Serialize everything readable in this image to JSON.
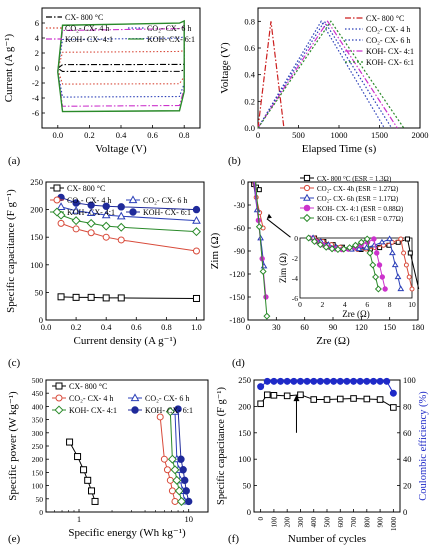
{
  "chart_data": [
    {
      "id": "a",
      "panel_label": "(a)",
      "type": "line",
      "xlabel": "Voltage (V)",
      "ylabel": "Current (A g⁻¹)",
      "xlim": [
        -0.1,
        0.9
      ],
      "ylim": [
        -8,
        8
      ],
      "xticks": [
        "0.0",
        "0.2",
        "0.4",
        "0.6",
        "0.8"
      ],
      "yticks": [
        "-6",
        "-4",
        "-2",
        "0",
        "2",
        "4",
        "6"
      ],
      "legend_position": "top",
      "series": [
        {
          "name": "CX- 800 °C",
          "color": "#000000",
          "dash": "6,2,1.5,2",
          "half_height": 0.45
        },
        {
          "name": "CO₂- CX- 4 h",
          "color": "#d84a3a",
          "dash": "1.5,2",
          "half_height": 2.1
        },
        {
          "name": "CO₂- CX- 6 h",
          "color": "#2b3fb8",
          "dash": "1.5,2",
          "half_height": 3.8
        },
        {
          "name": "KOH- CX- 4:1",
          "color": "#cc33cc",
          "dash": "6,2,1.5,2",
          "half_height": 5.0
        },
        {
          "name": "KOH- CX- 6:1",
          "color": "#2a8a2a",
          "dash": "",
          "half_height": 5.7
        }
      ]
    },
    {
      "id": "b",
      "panel_label": "(b)",
      "type": "line",
      "xlabel": "Elapsed Time (s)",
      "ylabel": "Voltage (V)",
      "xlim": [
        0,
        2000
      ],
      "ylim": [
        0,
        0.9
      ],
      "xticks": [
        "0",
        "500",
        "1000",
        "1500",
        "2000"
      ],
      "yticks": [
        "0.0",
        "0.2",
        "0.4",
        "0.6",
        "0.8"
      ],
      "legend_position": "top-right",
      "series": [
        {
          "name": "CX- 800 °C",
          "color": "#cc1f1f",
          "dash": "6,2,1.5,2",
          "x": [
            0,
            160,
            320
          ],
          "y": [
            0,
            0.8,
            0
          ]
        },
        {
          "name": "CO₂- CX- 4 h",
          "color": "#2b3fb8",
          "dash": "1.5,2",
          "x": [
            0,
            780,
            1560
          ],
          "y": [
            0,
            0.8,
            0
          ]
        },
        {
          "name": "CO₂- CX- 6 h",
          "color": "#2b3fb8",
          "dash": "1.5,2",
          "x": [
            0,
            820,
            1650
          ],
          "y": [
            0,
            0.8,
            0
          ]
        },
        {
          "name": "KOH- CX- 4:1",
          "color": "#cc33cc",
          "dash": "6,2,1.5,2",
          "x": [
            0,
            860,
            1720
          ],
          "y": [
            0,
            0.8,
            0
          ]
        },
        {
          "name": "KOH- CX- 6:1",
          "color": "#2a8a2a",
          "dash": "2,2",
          "x": [
            0,
            900,
            1800
          ],
          "y": [
            0,
            0.8,
            0
          ]
        }
      ]
    },
    {
      "id": "c",
      "panel_label": "(c)",
      "type": "line",
      "xlabel": "Current density (A g⁻¹)",
      "ylabel": "Specific capacitance (F g⁻¹)",
      "xlim": [
        0,
        1.05
      ],
      "ylim": [
        0,
        250
      ],
      "xticks": [
        "0.0",
        "0.2",
        "0.4",
        "0.6",
        "0.8",
        "1.0"
      ],
      "yticks": [
        "0",
        "50",
        "100",
        "150",
        "200",
        "250"
      ],
      "x": [
        0.1,
        0.2,
        0.3,
        0.4,
        0.5,
        1.0
      ],
      "legend_position": "top",
      "series": [
        {
          "name": "CX- 800 °C",
          "color": "#000000",
          "marker": "square",
          "values": [
            42,
            41,
            41,
            40,
            40,
            39
          ]
        },
        {
          "name": "CO₂- CX- 4 h",
          "color": "#d84a3a",
          "marker": "circle",
          "values": [
            175,
            165,
            158,
            150,
            145,
            125
          ]
        },
        {
          "name": "CO₂- CX- 6 h",
          "color": "#2b3fb8",
          "marker": "triangle",
          "values": [
            205,
            198,
            194,
            190,
            188,
            180
          ]
        },
        {
          "name": "KOH- CX- 4:1",
          "color": "#2a8a2a",
          "marker": "diamond",
          "values": [
            190,
            180,
            175,
            170,
            168,
            160
          ]
        },
        {
          "name": "KOH- CX- 6:1",
          "color": "#1f2a9a",
          "marker": "ball",
          "values": [
            222,
            212,
            208,
            206,
            205,
            200
          ]
        }
      ]
    },
    {
      "id": "d",
      "panel_label": "(d)",
      "type": "scatter",
      "xlabel": "Zre (Ω)",
      "ylabel": "Zim (Ω)",
      "xlim": [
        0,
        180
      ],
      "ylim": [
        -180,
        0
      ],
      "xticks": [
        "0",
        "30",
        "60",
        "90",
        "120",
        "150",
        "180"
      ],
      "yticks": [
        "0",
        "-30",
        "-60",
        "-90",
        "-120",
        "-150",
        "-180"
      ],
      "legend_position": "top-right",
      "inset": {
        "xlabel": "Zre (Ω)",
        "ylabel": "Zim (Ω)",
        "xlim": [
          0,
          10
        ],
        "ylim": [
          -6,
          0
        ],
        "xticks": [
          "0",
          "2",
          "4",
          "6",
          "8",
          "10"
        ],
        "yticks": [
          "0",
          "-2",
          "-4",
          "-6"
        ]
      },
      "series": [
        {
          "name": "CX- 800 °C (ESR = 1.3Ω)",
          "color": "#000000",
          "marker": "square"
        },
        {
          "name": "CO₂- CX- 4h (ESR = 1.27Ω)",
          "color": "#d84a3a",
          "marker": "circle"
        },
        {
          "name": "CO₂- CX- 6h (ESR = 1.17Ω)",
          "color": "#2b3fb8",
          "marker": "triangle"
        },
        {
          "name": "KOH- CX- 4:1 (ESR = 0.88Ω)",
          "color": "#cc33cc",
          "marker": "ball"
        },
        {
          "name": "KOH- CX- 6:1 (ESR = 0.77Ω)",
          "color": "#2a8a2a",
          "marker": "diamond"
        }
      ]
    },
    {
      "id": "e",
      "panel_label": "(e)",
      "type": "line",
      "xlabel": "Specific energy (Wh kg⁻¹)",
      "ylabel": "Specific power (W kg⁻¹)",
      "xscale": "log",
      "xlim": [
        0.5,
        15
      ],
      "ylim": [
        0,
        500
      ],
      "xticks": [
        "1",
        "10"
      ],
      "yticks": [
        "0",
        "50",
        "100",
        "150",
        "200",
        "250",
        "300",
        "350",
        "400",
        "450",
        "500"
      ],
      "legend_position": "top",
      "series": [
        {
          "name": "CX- 800 °C",
          "color": "#000000",
          "marker": "square",
          "x": [
            0.82,
            0.97,
            1.1,
            1.2,
            1.3,
            1.4
          ],
          "y": [
            265,
            210,
            160,
            120,
            80,
            40
          ]
        },
        {
          "name": "CO₂- CX- 4 h",
          "color": "#d84a3a",
          "marker": "circle",
          "x": [
            5.5,
            6.0,
            6.4,
            6.8,
            7.1,
            7.5
          ],
          "y": [
            360,
            200,
            160,
            120,
            80,
            40
          ]
        },
        {
          "name": "CO₂- CX- 6 h",
          "color": "#2b3fb8",
          "marker": "triangle",
          "x": [
            7.5,
            7.8,
            8.1,
            8.4,
            8.8,
            9.2
          ],
          "y": [
            380,
            200,
            160,
            120,
            80,
            40
          ]
        },
        {
          "name": "KOH- CX- 4:1",
          "color": "#2a8a2a",
          "marker": "diamond",
          "x": [
            6.8,
            7.1,
            7.5,
            7.8,
            8.2,
            8.6
          ],
          "y": [
            380,
            200,
            160,
            120,
            80,
            40
          ]
        },
        {
          "name": "KOH- CX- 6:1",
          "color": "#1f2a9a",
          "marker": "ball",
          "x": [
            8.0,
            8.5,
            8.9,
            9.2,
            9.5,
            10.0
          ],
          "y": [
            390,
            200,
            160,
            120,
            80,
            40
          ]
        }
      ]
    },
    {
      "id": "f",
      "panel_label": "(f)",
      "type": "line",
      "xlabel": "Number of cycles",
      "ylabel": "Specific capacitance (F g⁻¹)",
      "y2label": "Coulombic efficiency (%)",
      "xlim": [
        -50,
        1050
      ],
      "ylim": [
        0,
        250
      ],
      "y2lim": [
        0,
        100
      ],
      "xticks": [
        "0",
        "100",
        "200",
        "300",
        "400",
        "500",
        "600",
        "700",
        "800",
        "900",
        "1000"
      ],
      "yticks": [
        "0",
        "50",
        "100",
        "150",
        "200",
        "250"
      ],
      "y2ticks": [
        "0",
        "20",
        "40",
        "60",
        "80",
        "100"
      ],
      "series": [
        {
          "name": "Specific capacitance",
          "axis": "left",
          "color": "#000000",
          "marker": "square",
          "x": [
            0,
            50,
            100,
            200,
            300,
            400,
            500,
            600,
            700,
            800,
            900,
            1000
          ],
          "values": [
            205,
            222,
            221,
            220,
            222,
            213,
            213,
            214,
            215,
            214,
            213,
            198
          ]
        },
        {
          "name": "Coulombic efficiency",
          "axis": "right",
          "color": "#1f2ac8",
          "marker": "ball",
          "x": [
            0,
            50,
            100,
            150,
            200,
            250,
            300,
            350,
            400,
            450,
            500,
            550,
            600,
            650,
            700,
            750,
            800,
            850,
            900,
            950,
            1000
          ],
          "values": [
            95,
            99,
            99,
            99,
            99,
            99,
            99,
            99,
            99,
            99,
            99,
            99,
            99,
            99,
            99,
            99,
            99,
            99,
            99,
            99,
            90
          ]
        }
      ]
    }
  ]
}
